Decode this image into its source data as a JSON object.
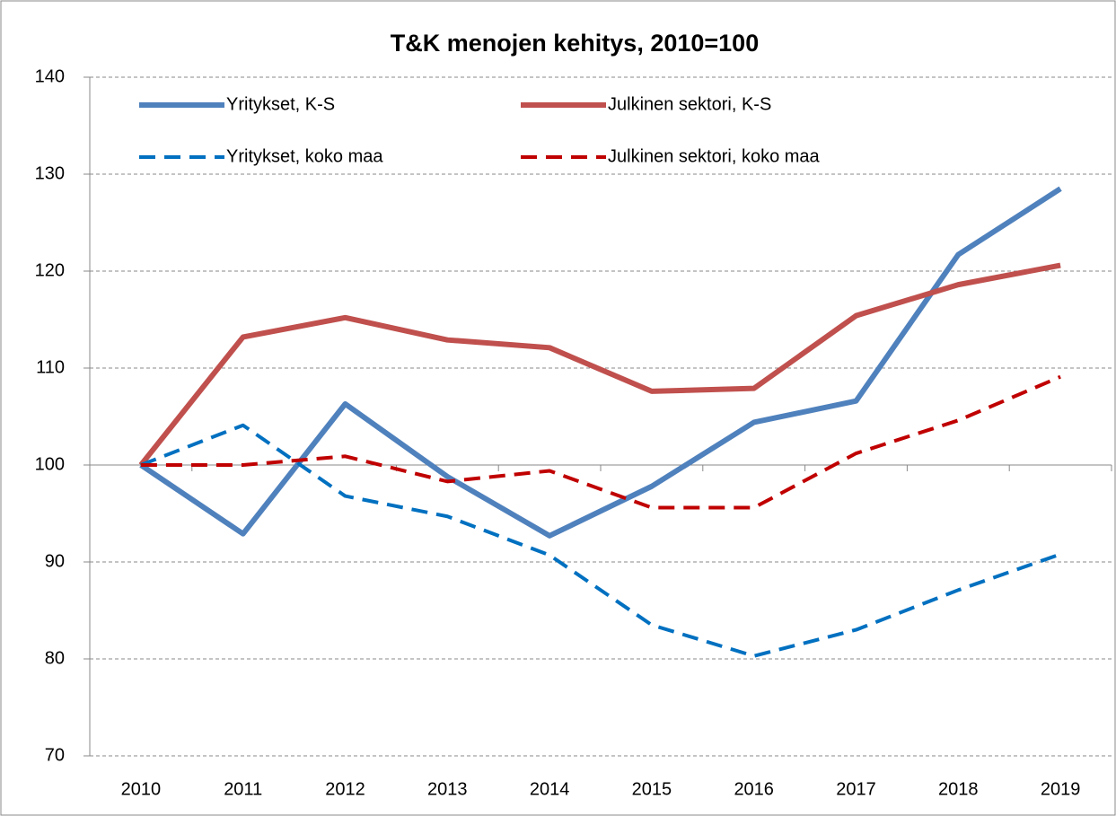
{
  "chart_data": {
    "type": "line",
    "title": "T&K menojen kehitys, 2010=100",
    "categories": [
      "2010",
      "2011",
      "2012",
      "2013",
      "2014",
      "2015",
      "2016",
      "2017",
      "2018",
      "2019"
    ],
    "series": [
      {
        "name": "Yritykset, K-S",
        "color": "#4f81bd",
        "dash": false,
        "values": [
          100,
          92.9,
          106.3,
          98.8,
          92.7,
          97.8,
          104.4,
          106.6,
          121.7,
          128.5
        ]
      },
      {
        "name": "Julkinen sektori, K-S",
        "color": "#c0504d",
        "dash": false,
        "values": [
          100,
          113.2,
          115.2,
          112.9,
          112.1,
          107.6,
          107.9,
          115.4,
          118.6,
          120.6
        ]
      },
      {
        "name": "Yritykset, koko maa",
        "color": "#0070c0",
        "dash": true,
        "values": [
          100,
          104.1,
          96.8,
          94.7,
          90.7,
          83.5,
          80.3,
          83.0,
          87.1,
          90.8
        ]
      },
      {
        "name": "Julkinen sektori, koko maa",
        "color": "#c00000",
        "dash": true,
        "values": [
          100,
          100.0,
          100.9,
          98.3,
          99.4,
          95.6,
          95.6,
          101.2,
          104.6,
          109.1
        ]
      }
    ],
    "ylim": [
      70,
      140
    ],
    "yticks": [
      70,
      80,
      90,
      100,
      110,
      120,
      130,
      140
    ],
    "grid": true,
    "x_axis_crosses": 100,
    "legend": "top"
  }
}
